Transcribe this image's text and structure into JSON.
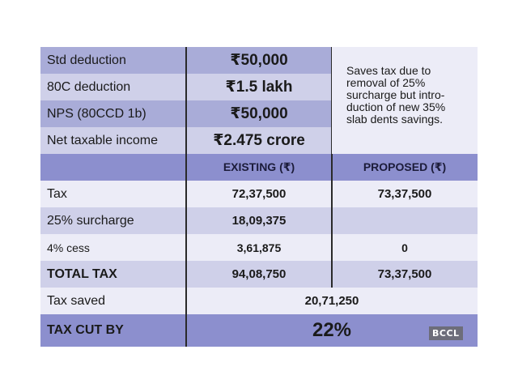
{
  "top": {
    "rows": [
      {
        "label": "Std deduction",
        "value": "₹50,000"
      },
      {
        "label": "80C deduction",
        "value": "₹1.5 lakh"
      },
      {
        "label": "NPS (80CCD 1b)",
        "value": "₹50,000"
      },
      {
        "label": "Net taxable income",
        "value": "₹2.475 crore"
      }
    ],
    "note": "Saves tax due to removal of 25% surcharge but intro-duction of new 35% slab dents savings."
  },
  "header": {
    "existing": "EXISTING (₹)",
    "proposed": "PROPOSED (₹)"
  },
  "rows": [
    {
      "label": "Tax",
      "existing": "72,37,500",
      "proposed": "73,37,500"
    },
    {
      "label": "25% surcharge",
      "existing": "18,09,375",
      "proposed": ""
    },
    {
      "label": "4% cess",
      "existing": "3,61,875",
      "proposed": "0"
    },
    {
      "label": "TOTAL TAX",
      "existing": "94,08,750",
      "proposed": "73,37,500"
    }
  ],
  "saved": {
    "label": "Tax saved",
    "value": "20,71,250"
  },
  "cut": {
    "label": "TAX CUT BY",
    "value": "22%"
  },
  "badge": "BCCL"
}
